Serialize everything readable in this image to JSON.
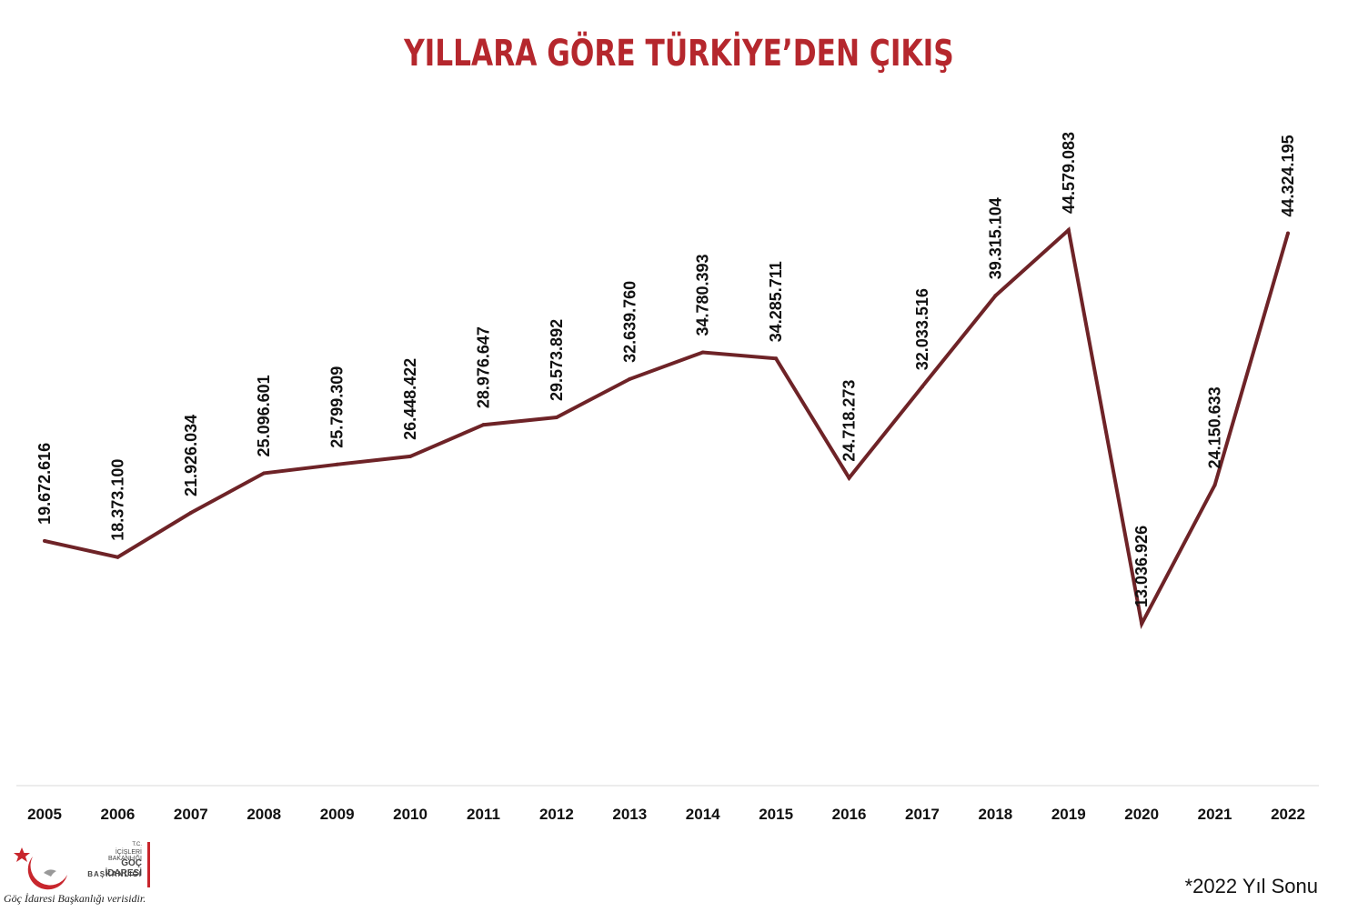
{
  "chart_data": {
    "type": "line",
    "title": "YILLARA GÖRE TÜRKİYE’DEN ÇIKIŞ",
    "categories": [
      "2005",
      "2006",
      "2007",
      "2008",
      "2009",
      "2010",
      "2011",
      "2012",
      "2013",
      "2014",
      "2015",
      "2016",
      "2017",
      "2018",
      "2019",
      "2020",
      "2021",
      "2022"
    ],
    "values": [
      19672616,
      18373100,
      21926034,
      25096601,
      25799309,
      26448422,
      28976647,
      29573892,
      32639760,
      34780393,
      34285711,
      24718273,
      32033516,
      39315104,
      44579083,
      13036926,
      24150633,
      44324195
    ],
    "data_labels": [
      "19.672.616",
      "18.373.100",
      "21.926.034",
      "25.096.601",
      "25.799.309",
      "26.448.422",
      "28.976.647",
      "29.573.892",
      "32.639.760",
      "34.780.393",
      "34.285.711",
      "24.718.273",
      "32.033.516",
      "39.315.104",
      "44.579.083",
      "13.036.926",
      "24.150.633",
      "44.324.195"
    ],
    "line_color": "#6e2327",
    "grid": false,
    "legend": "none"
  },
  "logo": {
    "line1": "T.C.",
    "line2": "İÇİŞLERİ BAKANLIĞI",
    "line3": "GÖÇ İDARESİ",
    "line4": "BAŞKANLIĞI"
  },
  "source_note": "Göç İdaresi Başkanlığı verisidir.",
  "footnote": "*2022 Yıl Sonu"
}
